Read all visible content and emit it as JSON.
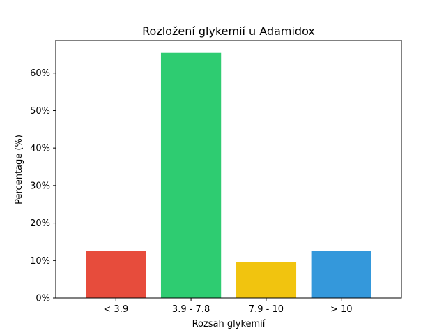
{
  "chart_data": {
    "type": "bar",
    "title": "Rozložení glykemií u  Adamidox",
    "xlabel": "Rozsah glykemií",
    "ylabel": "Percentage (%)",
    "categories": [
      "< 3.9",
      "3.9 - 7.8",
      "7.9 - 10",
      "> 10"
    ],
    "values": [
      12.5,
      65.4,
      9.6,
      12.5
    ],
    "colors": [
      "#e74c3c",
      "#2ecc71",
      "#f1c40f",
      "#3498db"
    ],
    "ylim": [
      0,
      68.7
    ],
    "yticks": [
      0,
      10,
      20,
      30,
      40,
      50,
      60
    ],
    "ytick_labels": [
      "0%",
      "10%",
      "20%",
      "30%",
      "40%",
      "50%",
      "60%"
    ],
    "grid": false,
    "legend": "none"
  }
}
